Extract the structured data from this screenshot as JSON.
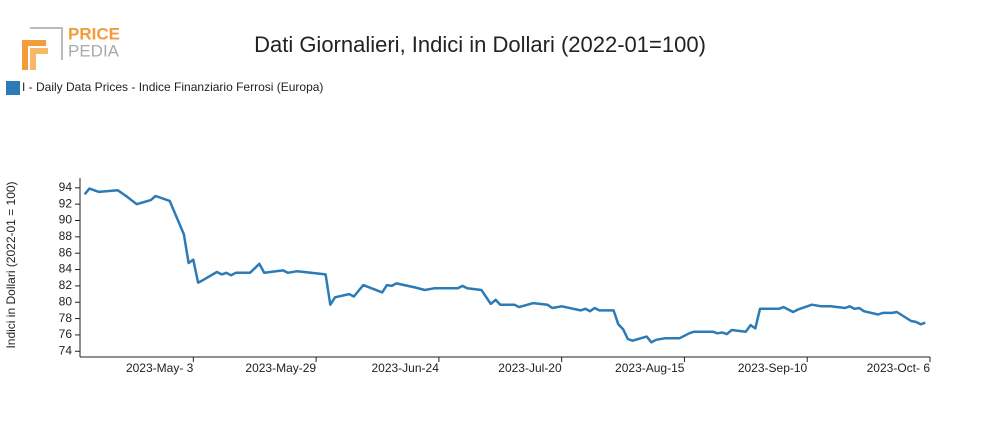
{
  "logo": {
    "top": "PRICE",
    "bottom": "PEDIA"
  },
  "chart_data": {
    "type": "line",
    "title": "Dati Giornalieri, Indici in Dollari (2022-01=100)",
    "y_label": "Indici in Dollari (2022-01 = 100)",
    "legend": "top-left",
    "x": [
      "2023-04-10",
      "2023-04-11",
      "2023-04-13",
      "2023-04-17",
      "2023-04-18",
      "2023-04-19",
      "2023-04-21",
      "2023-04-24",
      "2023-04-25",
      "2023-04-28",
      "2023-05-01",
      "2023-05-02",
      "2023-05-03",
      "2023-05-04",
      "2023-05-05",
      "2023-05-08",
      "2023-05-09",
      "2023-05-10",
      "2023-05-11",
      "2023-05-12",
      "2023-05-15",
      "2023-05-17",
      "2023-05-18",
      "2023-05-22",
      "2023-05-23",
      "2023-05-25",
      "2023-05-31",
      "2023-06-01",
      "2023-06-02",
      "2023-06-05",
      "2023-06-06",
      "2023-06-08",
      "2023-06-12",
      "2023-06-13",
      "2023-06-14",
      "2023-06-15",
      "2023-06-19",
      "2023-06-21",
      "2023-06-23",
      "2023-06-28",
      "2023-06-29",
      "2023-06-30",
      "2023-07-03",
      "2023-07-05",
      "2023-07-06",
      "2023-07-07",
      "2023-07-10",
      "2023-07-11",
      "2023-07-14",
      "2023-07-17",
      "2023-07-18",
      "2023-07-20",
      "2023-07-24",
      "2023-07-25",
      "2023-07-26",
      "2023-07-27",
      "2023-07-28",
      "2023-07-31",
      "2023-08-01",
      "2023-08-02",
      "2023-08-03",
      "2023-08-04",
      "2023-08-07",
      "2023-08-08",
      "2023-08-09",
      "2023-08-11",
      "2023-08-14",
      "2023-08-16",
      "2023-08-17",
      "2023-08-21",
      "2023-08-22",
      "2023-08-23",
      "2023-08-24",
      "2023-08-25",
      "2023-08-28",
      "2023-08-29",
      "2023-08-30",
      "2023-08-31",
      "2023-09-04",
      "2023-09-05",
      "2023-09-07",
      "2023-09-08",
      "2023-09-11",
      "2023-09-13",
      "2023-09-15",
      "2023-09-18",
      "2023-09-19",
      "2023-09-20",
      "2023-09-21",
      "2023-09-22",
      "2023-09-25",
      "2023-09-26",
      "2023-09-28",
      "2023-09-29",
      "2023-10-02",
      "2023-10-03",
      "2023-10-04",
      "2023-10-05"
    ],
    "series": [
      {
        "name": "I - Daily Data Prices - Indice Finanziario Ferrosi (Europa)",
        "color": "#2c7bb6",
        "values": [
          93.2,
          93.9,
          93.5,
          93.7,
          93.3,
          92.9,
          92.0,
          92.5,
          93.0,
          92.4,
          88.3,
          84.8,
          85.2,
          82.4,
          82.7,
          83.7,
          83.4,
          83.6,
          83.3,
          83.6,
          83.6,
          84.7,
          83.6,
          83.9,
          83.6,
          83.8,
          83.4,
          79.7,
          80.6,
          81.0,
          80.7,
          82.1,
          81.2,
          82.1,
          82.0,
          82.3,
          81.8,
          81.5,
          81.7,
          81.7,
          82.0,
          81.7,
          81.5,
          79.8,
          80.3,
          79.7,
          79.7,
          79.4,
          79.9,
          79.7,
          79.3,
          79.5,
          79.0,
          79.2,
          78.9,
          79.3,
          79.0,
          79.0,
          77.3,
          76.7,
          75.5,
          75.3,
          75.8,
          75.1,
          75.4,
          75.6,
          75.6,
          76.2,
          76.4,
          76.4,
          76.2,
          76.3,
          76.1,
          76.6,
          76.4,
          77.2,
          76.8,
          79.2,
          79.2,
          79.4,
          78.8,
          79.1,
          79.7,
          79.5,
          79.5,
          79.3,
          79.5,
          79.2,
          79.3,
          78.9,
          78.5,
          78.7,
          78.7,
          78.8,
          77.7,
          77.6,
          77.3,
          77.5
        ]
      }
    ],
    "xlim": [
      "2023-04-09",
      "2023-10-06"
    ],
    "xticks": [
      {
        "value": "2023-05-03",
        "label": "2023-May- 3"
      },
      {
        "value": "2023-05-29",
        "label": "2023-May-29"
      },
      {
        "value": "2023-06-24",
        "label": "2023-Jun-24"
      },
      {
        "value": "2023-07-20",
        "label": "2023-Jul-20"
      },
      {
        "value": "2023-08-15",
        "label": "2023-Aug-15"
      },
      {
        "value": "2023-09-10",
        "label": "2023-Sep-10"
      },
      {
        "value": "2023-10-06",
        "label": "2023-Oct- 6"
      }
    ],
    "ylim": [
      73.3,
      95.2
    ],
    "yticks": [
      74,
      76,
      78,
      80,
      82,
      84,
      86,
      88,
      90,
      92,
      94
    ]
  }
}
